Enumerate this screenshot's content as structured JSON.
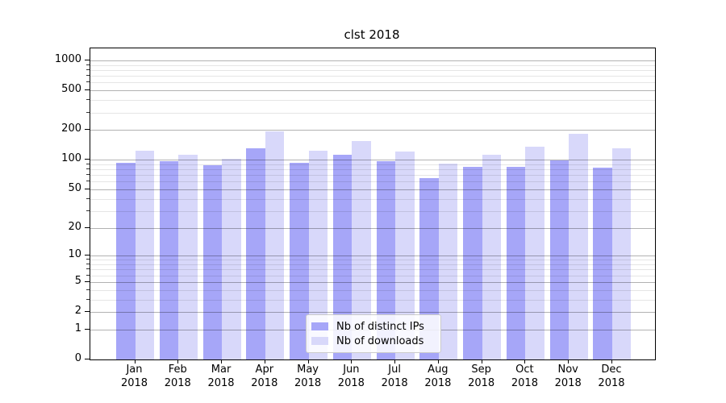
{
  "figure": {
    "background_color": "#ffffff",
    "axes_border_color": "#000000"
  },
  "chart_data": {
    "type": "bar",
    "title": "clst 2018",
    "xlabel": "",
    "ylabel": "",
    "categories": [
      {
        "month": "Jan",
        "year": "2018"
      },
      {
        "month": "Feb",
        "year": "2018"
      },
      {
        "month": "Mar",
        "year": "2018"
      },
      {
        "month": "Apr",
        "year": "2018"
      },
      {
        "month": "May",
        "year": "2018"
      },
      {
        "month": "Jun",
        "year": "2018"
      },
      {
        "month": "Jul",
        "year": "2018"
      },
      {
        "month": "Aug",
        "year": "2018"
      },
      {
        "month": "Sep",
        "year": "2018"
      },
      {
        "month": "Oct",
        "year": "2018"
      },
      {
        "month": "Nov",
        "year": "2018"
      },
      {
        "month": "Dec",
        "year": "2018"
      }
    ],
    "series": [
      {
        "name": "Nb of distinct IPs",
        "color": "#a6a6f8",
        "values": [
          93,
          97,
          88,
          130,
          93,
          112,
          97,
          65,
          85,
          85,
          98,
          83
        ]
      },
      {
        "name": "Nb of downloads",
        "color": "#d8d8fa",
        "values": [
          123,
          112,
          102,
          192,
          123,
          155,
          121,
          92,
          112,
          136,
          182,
          130
        ]
      }
    ],
    "y_axis": {
      "scale": "log1p",
      "major_ticks": [
        0,
        1,
        2,
        5,
        10,
        20,
        50,
        100,
        200,
        500,
        1000
      ],
      "minor_ticks": [
        3,
        4,
        6,
        7,
        8,
        9,
        30,
        40,
        60,
        70,
        80,
        90,
        300,
        400,
        600,
        700,
        800,
        900
      ],
      "range": [
        0,
        1324
      ]
    },
    "grid": {
      "major_color": "rgba(0,0,0,0.30)",
      "minor_color": "rgba(0,0,0,0.10)",
      "drawn_above_bars": true
    },
    "legend": {
      "position": "inside-bottom-center-left",
      "background": "rgba(255,255,255,0.85)",
      "border_color": "#cbcbcb"
    }
  }
}
